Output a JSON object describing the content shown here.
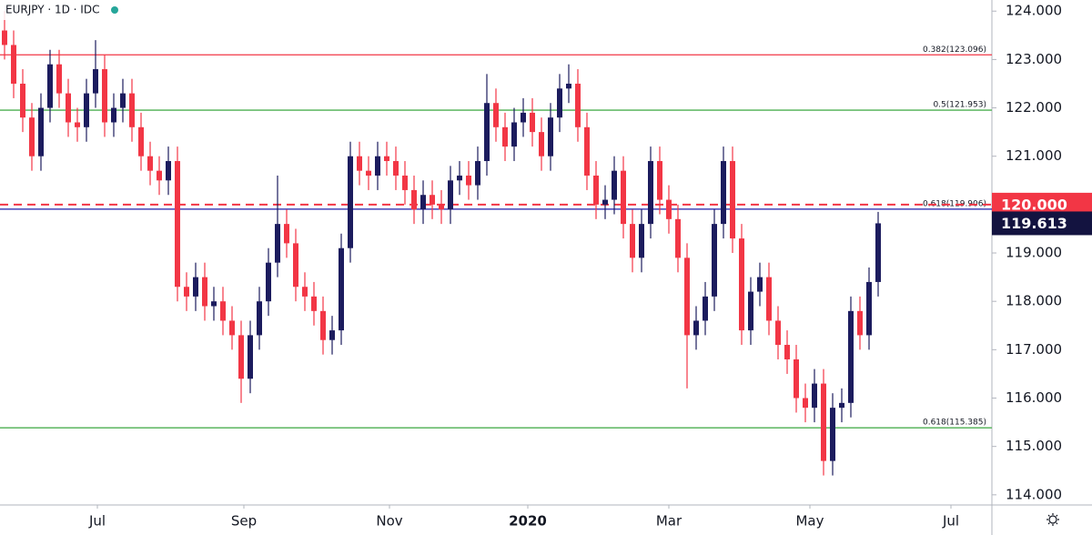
{
  "chart_data": {
    "type": "candlestick",
    "title": "EURJPY · 1D · IDC",
    "up_color": "#1c1c5e",
    "down_color": "#f23645",
    "x": [
      0,
      1,
      2,
      3,
      4,
      5,
      6,
      7,
      8,
      9,
      10,
      11,
      12,
      13,
      14,
      15,
      16,
      17,
      18,
      19,
      20,
      21,
      22,
      23,
      24,
      25,
      26,
      27,
      28,
      29,
      30,
      31,
      32,
      33,
      34,
      35,
      36,
      37,
      38,
      39,
      40,
      41,
      42,
      43,
      44,
      45,
      46,
      47,
      48,
      49,
      50,
      51,
      52,
      53,
      54,
      55,
      56,
      57,
      58,
      59,
      60,
      61,
      62,
      63,
      64,
      65,
      66,
      67,
      68,
      69,
      70,
      71,
      72,
      73,
      74,
      75,
      76,
      77,
      78,
      79,
      80,
      81,
      82,
      83,
      84,
      85,
      86,
      87,
      88,
      89,
      90,
      91,
      92,
      93,
      94,
      95,
      96
    ],
    "open": [
      123.6,
      123.3,
      122.5,
      121.8,
      121.0,
      122.0,
      122.9,
      122.3,
      121.7,
      121.6,
      122.3,
      122.8,
      121.7,
      122.0,
      122.3,
      121.6,
      121.0,
      120.7,
      120.5,
      120.9,
      118.3,
      118.1,
      118.5,
      117.9,
      118.0,
      117.6,
      117.3,
      116.4,
      117.3,
      118.0,
      118.8,
      119.6,
      119.2,
      118.3,
      118.1,
      117.8,
      117.2,
      117.4,
      119.1,
      121.0,
      120.7,
      120.6,
      121.0,
      120.9,
      120.6,
      120.3,
      119.9,
      120.2,
      120.0,
      119.9,
      120.5,
      120.6,
      120.4,
      120.9,
      122.1,
      121.6,
      121.2,
      121.7,
      121.9,
      121.5,
      121.0,
      121.8,
      122.4,
      122.5,
      121.6,
      120.6,
      120.0,
      120.1,
      120.7,
      119.6,
      118.9,
      119.6,
      120.9,
      120.1,
      119.7,
      118.9,
      117.3,
      117.6,
      118.1,
      119.6,
      120.9,
      119.3,
      117.4,
      118.2,
      118.5,
      117.6,
      117.1,
      116.8,
      116.0,
      115.8,
      116.3,
      114.7,
      115.8,
      115.9,
      117.8,
      117.3,
      118.4
    ],
    "high": [
      124.0,
      123.6,
      122.8,
      122.1,
      122.3,
      123.2,
      123.2,
      122.6,
      122.0,
      122.6,
      123.4,
      123.1,
      122.3,
      122.6,
      122.6,
      121.9,
      121.3,
      121.0,
      121.2,
      121.2,
      118.6,
      118.8,
      118.8,
      118.3,
      118.3,
      117.9,
      117.6,
      117.6,
      118.3,
      119.1,
      120.6,
      119.9,
      119.5,
      118.6,
      118.4,
      118.1,
      117.7,
      119.4,
      121.3,
      121.3,
      121.0,
      121.3,
      121.3,
      121.2,
      120.9,
      120.6,
      120.5,
      120.5,
      120.3,
      120.8,
      120.9,
      120.9,
      121.2,
      122.7,
      122.4,
      121.9,
      122.0,
      122.2,
      122.2,
      121.8,
      122.1,
      122.7,
      122.9,
      122.8,
      121.9,
      120.9,
      120.4,
      121.0,
      121.0,
      119.9,
      119.9,
      121.2,
      121.2,
      120.4,
      120.0,
      119.2,
      117.9,
      118.4,
      119.9,
      121.2,
      121.2,
      119.6,
      118.5,
      118.8,
      118.8,
      117.9,
      117.4,
      117.1,
      116.3,
      116.6,
      116.6,
      116.1,
      116.2,
      118.1,
      118.1,
      118.7,
      119.85
    ],
    "low": [
      123.0,
      122.2,
      121.5,
      120.7,
      120.7,
      121.7,
      122.0,
      121.4,
      121.3,
      121.3,
      122.0,
      121.4,
      121.4,
      121.7,
      121.3,
      120.7,
      120.4,
      120.2,
      120.2,
      118.0,
      117.8,
      117.8,
      117.6,
      117.6,
      117.3,
      117.0,
      115.9,
      116.1,
      117.0,
      117.7,
      118.5,
      118.9,
      118.0,
      117.8,
      117.5,
      116.9,
      116.9,
      117.1,
      118.8,
      120.4,
      120.3,
      120.3,
      120.6,
      120.3,
      120.0,
      119.6,
      119.6,
      119.7,
      119.6,
      119.6,
      120.2,
      120.1,
      120.1,
      120.6,
      121.3,
      120.9,
      120.9,
      121.4,
      121.2,
      120.7,
      120.7,
      121.5,
      122.1,
      121.3,
      120.3,
      119.7,
      119.7,
      119.8,
      119.3,
      118.6,
      118.6,
      119.3,
      119.8,
      119.4,
      118.6,
      116.2,
      117.0,
      117.3,
      117.8,
      119.3,
      119.0,
      117.1,
      117.1,
      117.9,
      117.3,
      116.8,
      116.5,
      115.7,
      115.5,
      115.5,
      114.4,
      114.4,
      115.5,
      115.6,
      117.0,
      117.0,
      118.1
    ],
    "close": [
      123.3,
      122.5,
      121.8,
      121.0,
      122.0,
      122.9,
      122.3,
      121.7,
      121.6,
      122.3,
      122.8,
      121.7,
      122.0,
      122.3,
      121.6,
      121.0,
      120.7,
      120.5,
      120.9,
      118.3,
      118.1,
      118.5,
      117.9,
      118.0,
      117.6,
      117.3,
      116.4,
      117.3,
      118.0,
      118.8,
      119.6,
      119.2,
      118.3,
      118.1,
      117.8,
      117.2,
      117.4,
      119.1,
      121.0,
      120.7,
      120.6,
      121.0,
      120.9,
      120.6,
      120.3,
      119.9,
      120.2,
      120.0,
      119.9,
      120.5,
      120.6,
      120.4,
      120.9,
      122.1,
      121.6,
      121.2,
      121.7,
      121.9,
      121.5,
      121.0,
      121.8,
      122.4,
      122.5,
      121.6,
      120.6,
      120.0,
      120.1,
      120.7,
      119.6,
      118.9,
      119.6,
      120.9,
      120.1,
      119.7,
      118.9,
      117.3,
      117.6,
      118.1,
      119.6,
      120.9,
      119.3,
      117.4,
      118.2,
      118.5,
      117.6,
      117.1,
      116.8,
      116.0,
      115.8,
      116.3,
      114.7,
      115.8,
      115.9,
      117.8,
      117.3,
      118.4,
      119.613
    ],
    "xlim": [
      -0.5,
      108.5
    ],
    "xticks": [
      {
        "value": 10.2,
        "label": "Jul"
      },
      {
        "value": 26.3,
        "label": "Sep"
      },
      {
        "value": 42.3,
        "label": "Nov"
      },
      {
        "value": 57.5,
        "label": "2020"
      },
      {
        "value": 73,
        "label": "Mar"
      },
      {
        "value": 88.5,
        "label": "May"
      },
      {
        "value": 104,
        "label": "Jul"
      }
    ],
    "ylim": [
      113.79,
      124.23
    ],
    "yticks": [
      {
        "value": 114,
        "label": "114.000"
      },
      {
        "value": 115,
        "label": "115.000"
      },
      {
        "value": 116,
        "label": "116.000"
      },
      {
        "value": 117,
        "label": "117.000"
      },
      {
        "value": 118,
        "label": "118.000"
      },
      {
        "value": 119,
        "label": "119.000"
      },
      {
        "value": 121,
        "label": "121.000"
      },
      {
        "value": 122,
        "label": "122.000"
      },
      {
        "value": 123,
        "label": "123.000"
      },
      {
        "value": 124,
        "label": "124.000"
      }
    ],
    "levels": [
      {
        "value": 123.096,
        "label": "0.382(123.096)",
        "color": "#f23645"
      },
      {
        "value": 121.953,
        "label": "0.5(121.953)",
        "color": "#4caf50"
      },
      {
        "value": 119.906,
        "label": "0.618(119.906)",
        "color": "#1c1ca8"
      },
      {
        "value": 115.385,
        "label": "0.618(115.385)",
        "color": "#4caf50"
      }
    ],
    "dashed_levels": [
      {
        "value": 120,
        "color": "#f23645"
      }
    ],
    "price_labels": [
      {
        "value": 120,
        "label": "120.000",
        "color": "#f23645"
      },
      {
        "value": 119.613,
        "label": "119.613",
        "color": "#131340"
      }
    ]
  }
}
